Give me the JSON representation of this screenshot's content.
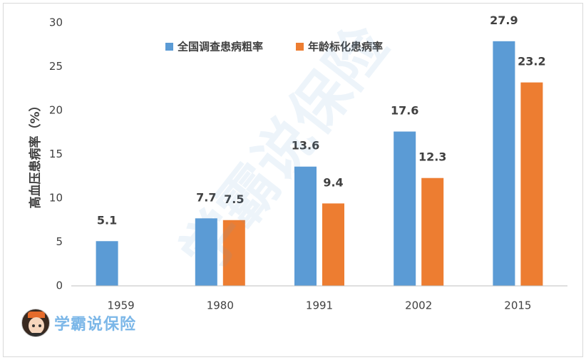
{
  "chart_data": {
    "type": "bar",
    "title": "",
    "xlabel": "",
    "ylabel": "高血压患病率（%）",
    "ylim": [
      0,
      30
    ],
    "yticks": [
      0,
      5,
      10,
      15,
      20,
      25,
      30
    ],
    "grid": false,
    "legend_position": "top",
    "categories": [
      "1959",
      "1980",
      "1991",
      "2002",
      "2015"
    ],
    "series": [
      {
        "name": "全国调查患病粗率",
        "color": "#5b9bd5",
        "values": [
          5.1,
          7.7,
          13.6,
          17.6,
          27.9
        ]
      },
      {
        "name": "年龄标化患病率",
        "color": "#ed7d31",
        "values": [
          null,
          7.5,
          9.4,
          12.3,
          23.2
        ]
      }
    ]
  },
  "branding": {
    "logo_text": "学霸说保险",
    "watermark_text": "学霸说保险",
    "avatar_icon": "student-avatar-icon"
  }
}
